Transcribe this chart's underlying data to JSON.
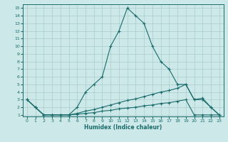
{
  "xlabel": "Humidex (Indice chaleur)",
  "bg_color": "#cce8e8",
  "grid_color": "#aacccc",
  "line_color": "#1a6b6b",
  "xlim": [
    0,
    23
  ],
  "ylim": [
    1,
    15
  ],
  "xticks": [
    0,
    1,
    2,
    3,
    4,
    5,
    6,
    7,
    8,
    9,
    10,
    11,
    12,
    13,
    14,
    15,
    16,
    17,
    18,
    19,
    20,
    21,
    22,
    23
  ],
  "yticks": [
    1,
    2,
    3,
    4,
    5,
    6,
    7,
    8,
    9,
    10,
    11,
    12,
    13,
    14,
    15
  ],
  "line1_x": [
    0,
    1,
    2,
    3,
    4,
    5,
    6,
    7,
    8,
    9,
    10,
    11,
    12,
    13,
    14,
    15,
    16,
    17,
    18,
    19,
    20,
    21,
    22,
    23
  ],
  "line1_y": [
    3,
    2,
    1,
    1,
    1,
    1,
    2,
    4,
    5,
    6,
    10,
    12,
    15,
    14,
    13,
    10,
    8,
    7,
    5,
    5,
    3,
    3,
    2,
    1
  ],
  "line2_x": [
    0,
    1,
    2,
    3,
    4,
    5,
    6,
    7,
    8,
    9,
    10,
    11,
    12,
    13,
    14,
    15,
    16,
    17,
    18,
    19,
    20,
    21,
    22,
    23
  ],
  "line2_y": [
    3,
    2,
    1,
    1,
    1,
    1,
    1.2,
    1.5,
    1.7,
    2.0,
    2.3,
    2.6,
    2.9,
    3.1,
    3.4,
    3.7,
    4.0,
    4.2,
    4.5,
    5.0,
    3.0,
    3.2,
    2.0,
    1.0
  ],
  "line3_x": [
    0,
    1,
    2,
    3,
    4,
    5,
    6,
    7,
    8,
    9,
    10,
    11,
    12,
    13,
    14,
    15,
    16,
    17,
    18,
    19,
    20,
    21,
    22,
    23
  ],
  "line3_y": [
    3,
    2,
    1,
    1,
    1,
    1,
    1.1,
    1.2,
    1.3,
    1.5,
    1.6,
    1.8,
    1.9,
    2.0,
    2.2,
    2.3,
    2.5,
    2.6,
    2.8,
    3.0,
    1.0,
    1.0,
    1.0,
    1.0
  ]
}
